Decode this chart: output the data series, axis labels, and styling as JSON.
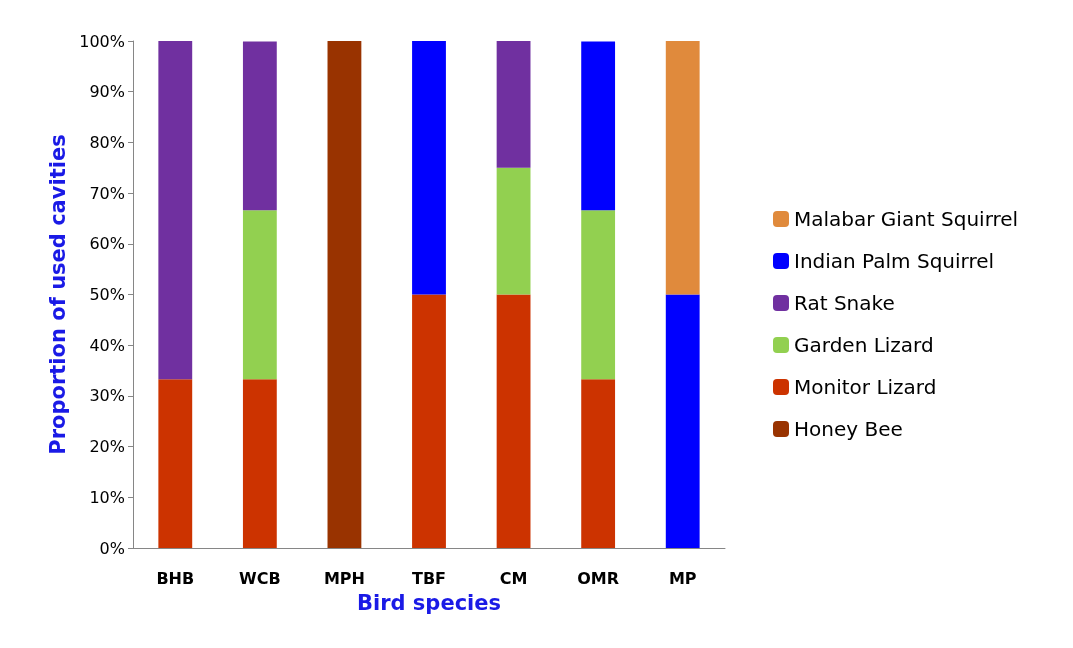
{
  "chart_data": {
    "type": "bar",
    "stacked": true,
    "xlabel": "Bird species",
    "ylabel": "Proportion of used cavities",
    "categories": [
      "BHB",
      "WCB",
      "MPH",
      "TBF",
      "CM",
      "OMR",
      "MP"
    ],
    "series": [
      {
        "name": "Honey Bee",
        "color": "#993300",
        "values": [
          null,
          null,
          100,
          null,
          null,
          null,
          null
        ]
      },
      {
        "name": "Monitor Lizard",
        "color": "#cc3300",
        "values": [
          33.3,
          33.3,
          null,
          50,
          50,
          33.3,
          null
        ]
      },
      {
        "name": "Garden Lizard",
        "color": "#92d050",
        "values": [
          null,
          33.3,
          null,
          null,
          25,
          33.3,
          null
        ]
      },
      {
        "name": "Rat Snake",
        "color": "#7030a0",
        "values": [
          66.7,
          33.3,
          null,
          null,
          25,
          null,
          null
        ]
      },
      {
        "name": "Indian Palm Squirrel",
        "color": "#0000ff",
        "values": [
          null,
          null,
          null,
          50,
          null,
          33.3,
          50
        ]
      },
      {
        "name": "Malabar Giant Squirrel",
        "color": "#e08a3c",
        "values": [
          null,
          null,
          null,
          null,
          null,
          null,
          50
        ]
      }
    ],
    "ylim": [
      0,
      100
    ],
    "yticks": [
      {
        "value": 0,
        "label": "0%"
      },
      {
        "value": 10,
        "label": "10%"
      },
      {
        "value": 20,
        "label": "20%"
      },
      {
        "value": 30,
        "label": "30%"
      },
      {
        "value": 40,
        "label": "40%"
      },
      {
        "value": 50,
        "label": "50%"
      },
      {
        "value": 60,
        "label": "60%"
      },
      {
        "value": 70,
        "label": "70%"
      },
      {
        "value": 80,
        "label": "80%"
      },
      {
        "value": 90,
        "label": "90%"
      },
      {
        "value": 100,
        "label": "100%"
      }
    ],
    "grid": false,
    "legend": "right"
  }
}
